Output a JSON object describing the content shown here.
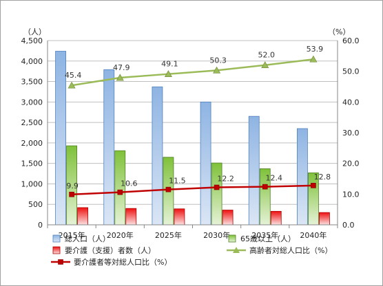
{
  "chart_data": {
    "type": "bar",
    "categories": [
      "2015年",
      "2020年",
      "2025年",
      "2030年",
      "2035年",
      "2040年"
    ],
    "y_left": {
      "unit": "（人）",
      "ylim": [
        0,
        4500
      ],
      "ticks": [
        "0",
        "500",
        "1,000",
        "1,500",
        "2,000",
        "2,500",
        "3,000",
        "3,500",
        "4,000",
        "4,500"
      ],
      "tick_values": [
        0,
        500,
        1000,
        1500,
        2000,
        2500,
        3000,
        3500,
        4000,
        4500
      ]
    },
    "y_right": {
      "unit": "（%）",
      "ylim": [
        0,
        60
      ],
      "ticks": [
        "0.0",
        "10.0",
        "20.0",
        "30.0",
        "40.0",
        "50.0",
        "60.0"
      ],
      "tick_values": [
        0,
        10,
        20,
        30,
        40,
        50,
        60
      ]
    },
    "grid": true,
    "legend_position": "bottom",
    "series": [
      {
        "name": "総人口（人）",
        "type": "bar",
        "axis": "left",
        "color": "#8eb4e3",
        "values": [
          4240,
          3790,
          3370,
          3000,
          2650,
          2350
        ]
      },
      {
        "name": "65歳以上（人）",
        "type": "bar",
        "axis": "left",
        "color": "#92d050",
        "values": [
          1930,
          1810,
          1650,
          1510,
          1370,
          1270
        ]
      },
      {
        "name": "要介護（支援）者数（人）",
        "type": "bar",
        "axis": "left",
        "color": "#ff0000",
        "values": [
          420,
          400,
          390,
          360,
          330,
          300
        ]
      },
      {
        "name": "高齢者対総人口比（%）",
        "type": "line",
        "axis": "right",
        "color": "#9bbb59",
        "marker": "triangle",
        "values": [
          45.4,
          47.9,
          49.1,
          50.3,
          52.0,
          53.9
        ],
        "labels": [
          "45.4",
          "47.9",
          "49.1",
          "50.3",
          "52.0",
          "53.9"
        ]
      },
      {
        "name": "要介護者等対総人口比（%）",
        "type": "line",
        "axis": "right",
        "color": "#c00000",
        "marker": "square",
        "values": [
          9.9,
          10.6,
          11.5,
          12.2,
          12.4,
          12.8
        ],
        "labels": [
          "9.9",
          "10.6",
          "11.5",
          "12.2",
          "12.4",
          "12.8"
        ]
      }
    ]
  }
}
